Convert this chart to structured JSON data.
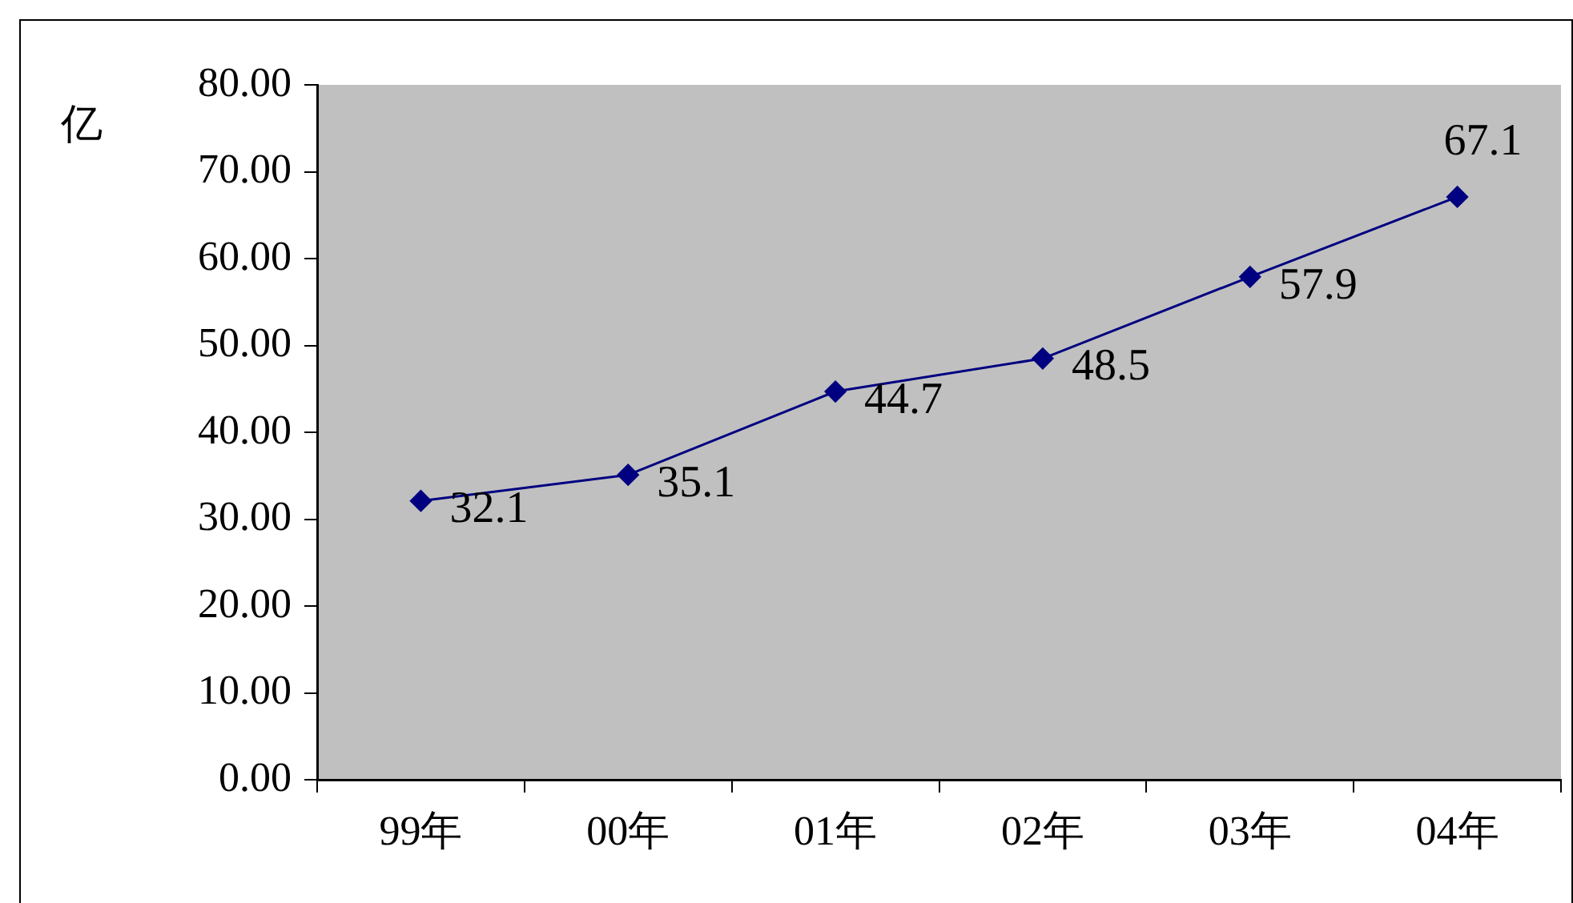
{
  "chart_data": {
    "type": "line",
    "ylabel": "亿",
    "categories": [
      "99年",
      "00年",
      "01年",
      "02年",
      "03年",
      "04年"
    ],
    "series": [
      {
        "color": "#000080",
        "values": [
          32.1,
          35.1,
          44.7,
          48.5,
          57.9,
          67.1
        ]
      }
    ],
    "ylim": [
      0,
      80
    ],
    "yticks": [
      {
        "value": 0,
        "label": "0.00"
      },
      {
        "value": 10,
        "label": "10.00"
      },
      {
        "value": 20,
        "label": "20.00"
      },
      {
        "value": 30,
        "label": "30.00"
      },
      {
        "value": 40,
        "label": "40.00"
      },
      {
        "value": 50,
        "label": "50.00"
      },
      {
        "value": 60,
        "label": "60.00"
      },
      {
        "value": 70,
        "label": "70.00"
      },
      {
        "value": 80,
        "label": "80.00"
      }
    ],
    "marker": "diamond",
    "line_style": "solid",
    "data_labels": true,
    "legend": false,
    "grid": false
  }
}
